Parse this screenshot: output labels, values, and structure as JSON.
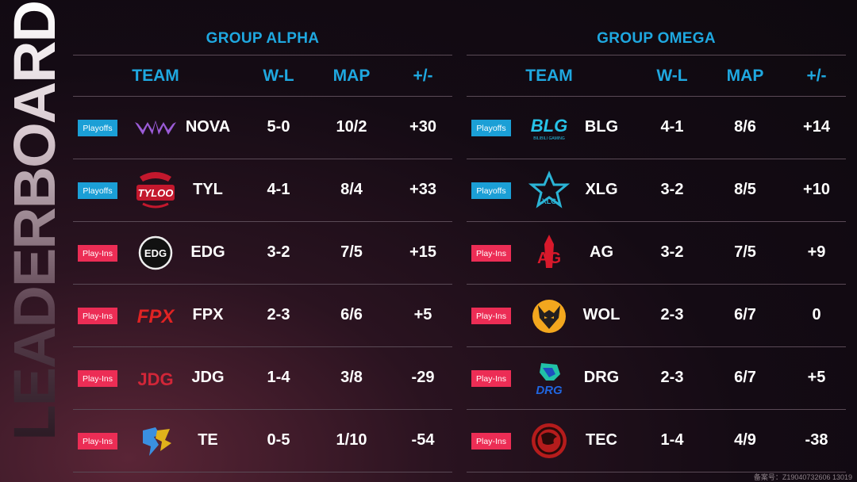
{
  "side_title": "LEADERBOARD",
  "headers": {
    "team": "TEAM",
    "wl": "W-L",
    "map": "MAP",
    "pm": "+/-"
  },
  "groups": [
    {
      "title": "GROUP ALPHA",
      "rows": [
        {
          "badge": "Playoffs",
          "badge_type": "playoffs",
          "team": "NOVA",
          "wl": "5-0",
          "map": "10/2",
          "pm": "+30",
          "logo": "nova-logo"
        },
        {
          "badge": "Playoffs",
          "badge_type": "playoffs",
          "team": "TYL",
          "wl": "4-1",
          "map": "8/4",
          "pm": "+33",
          "logo": "tylqq-logo",
          "logo_text": "TYLOO"
        },
        {
          "badge": "Play-Ins",
          "badge_type": "playins",
          "team": "EDG",
          "wl": "3-2",
          "map": "7/5",
          "pm": "+15",
          "logo": "edg-logo",
          "logo_text": "EDG"
        },
        {
          "badge": "Play-Ins",
          "badge_type": "playins",
          "team": "FPX",
          "wl": "2-3",
          "map": "6/6",
          "pm": "+5",
          "logo": "fpx-logo",
          "logo_text": "FPX"
        },
        {
          "badge": "Play-Ins",
          "badge_type": "playins",
          "team": "JDG",
          "wl": "1-4",
          "map": "3/8",
          "pm": "-29",
          "logo": "jdg-logo",
          "logo_text": "JDG"
        },
        {
          "badge": "Play-Ins",
          "badge_type": "playins",
          "team": "TE",
          "wl": "0-5",
          "map": "1/10",
          "pm": "-54",
          "logo": "te-logo"
        }
      ]
    },
    {
      "title": "GROUP OMEGA",
      "rows": [
        {
          "badge": "Playoffs",
          "badge_type": "playoffs",
          "team": "BLG",
          "wl": "4-1",
          "map": "8/6",
          "pm": "+14",
          "logo": "blg-logo",
          "logo_text": "BLG",
          "logo_subtext": "BILIBILI GAMING"
        },
        {
          "badge": "Playoffs",
          "badge_type": "playoffs",
          "team": "XLG",
          "wl": "3-2",
          "map": "8/5",
          "pm": "+10",
          "logo": "xlg-logo",
          "logo_text": "XLG"
        },
        {
          "badge": "Play-Ins",
          "badge_type": "playins",
          "team": "AG",
          "wl": "3-2",
          "map": "7/5",
          "pm": "+9",
          "logo": "ag-logo",
          "logo_text": "AG"
        },
        {
          "badge": "Play-Ins",
          "badge_type": "playins",
          "team": "WOL",
          "wl": "2-3",
          "map": "6/7",
          "pm": "0",
          "logo": "wol-logo"
        },
        {
          "badge": "Play-Ins",
          "badge_type": "playins",
          "team": "DRG",
          "wl": "2-3",
          "map": "6/7",
          "pm": "+5",
          "logo": "drg-logo",
          "logo_text": "DRG"
        },
        {
          "badge": "Play-Ins",
          "badge_type": "playins",
          "team": "TEC",
          "wl": "1-4",
          "map": "4/9",
          "pm": "-38",
          "logo": "tec-logo"
        }
      ]
    }
  ],
  "watermark": "备案号：Z19040732606 13019",
  "colors": {
    "accent": "#1fa8e0",
    "playoffs": "#1b9fd6",
    "playins": "#ec2d55",
    "divider": "#5a4a56"
  }
}
